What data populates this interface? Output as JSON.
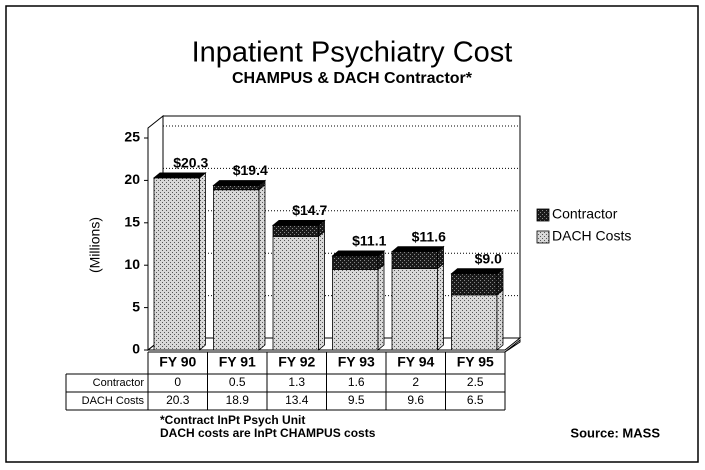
{
  "chart_data": {
    "type": "stacked_bar",
    "title": "Inpatient Psychiatry Cost",
    "subtitle": "CHAMPUS & DACH Contractor*",
    "y_label": "(Millions)",
    "categories": [
      "FY 90",
      "FY 91",
      "FY 92",
      "FY 93",
      "FY 94",
      "FY 95"
    ],
    "series": [
      {
        "name": "DACH Costs",
        "color": "#d8d8d8",
        "values": [
          20.3,
          18.9,
          13.4,
          9.5,
          9.6,
          6.5
        ]
      },
      {
        "name": "Contractor",
        "color": "#1a1a1a",
        "values": [
          0,
          0.5,
          1.3,
          1.6,
          2,
          2.5
        ]
      }
    ],
    "totals": [
      20.3,
      19.4,
      14.7,
      11.1,
      11.6,
      9.0
    ],
    "total_labels": [
      "$20.3",
      "$19.4",
      "$14.7",
      "$11.1",
      "$11.6",
      "$9.0"
    ],
    "legend_order": [
      1,
      0
    ],
    "table_order": [
      1,
      0
    ],
    "ylim": [
      0,
      25
    ],
    "yticks": [
      0,
      5,
      10,
      15,
      20,
      25
    ],
    "grid": true,
    "legend": "right",
    "footnotes": [
      "*Contract InPt Psych Unit",
      "DACH costs are InPt CHAMPUS costs"
    ],
    "source": "Source: MASS"
  }
}
